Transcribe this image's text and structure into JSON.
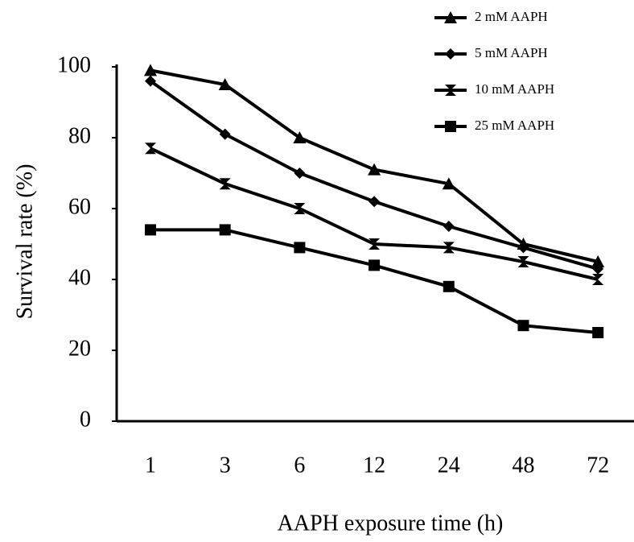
{
  "chart_data": {
    "type": "line",
    "x_label": "AAPH exposure time (h)",
    "y_label": "Survival rate (%)",
    "categories": [
      "1",
      "3",
      "6",
      "12",
      "24",
      "48",
      "72"
    ],
    "series": [
      {
        "name": "2 mM AAPH",
        "color": "#000000",
        "marker": "triangle",
        "values": [
          99,
          95,
          80,
          71,
          67,
          50,
          45
        ]
      },
      {
        "name": "5 mM AAPH",
        "color": "#000000",
        "marker": "diamond",
        "values": [
          96,
          81,
          70,
          62,
          55,
          49,
          43
        ]
      },
      {
        "name": "10 mM AAPH",
        "color": "#000000",
        "marker": "bowtie",
        "values": [
          77,
          67,
          60,
          50,
          49,
          45,
          40
        ]
      },
      {
        "name": "25 mM AAPH",
        "color": "#000000",
        "marker": "square",
        "values": [
          54,
          54,
          49,
          44,
          38,
          27,
          25
        ]
      }
    ],
    "ylim": [
      0,
      100
    ],
    "yticks": [
      0,
      20,
      40,
      60,
      80,
      100
    ],
    "grid": false
  }
}
